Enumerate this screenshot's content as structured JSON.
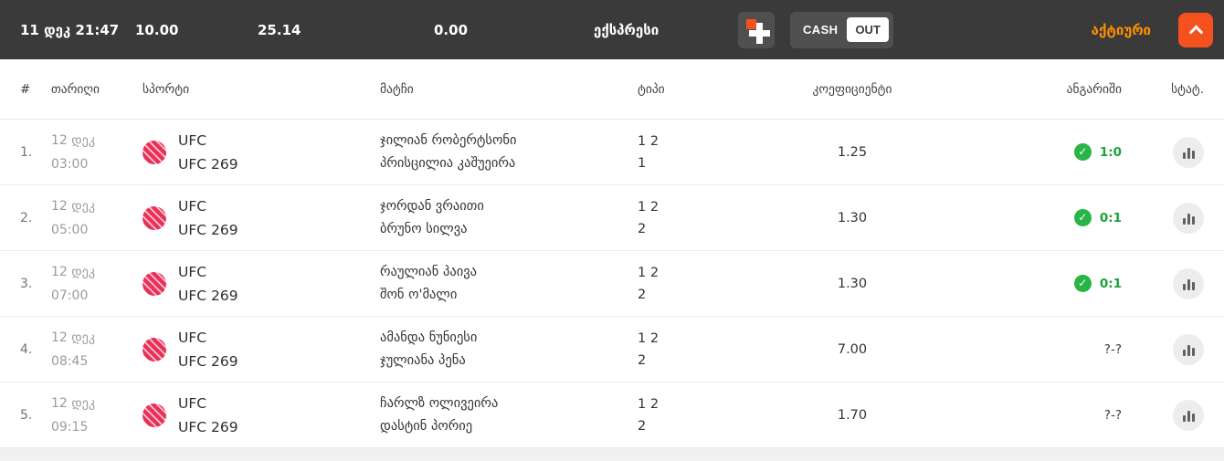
{
  "header": {
    "datetime": "11 დეკ 21:47",
    "stake": "10.00",
    "potential_win": "25.14",
    "cashout_value": "0.00",
    "bet_type": "ექსპრესი",
    "cash_label": "CASH",
    "out_label": "OUT",
    "status_label": "აქტიური"
  },
  "icons": {
    "won_check": "✓"
  },
  "colors": {
    "topbar_bg": "#3a3a3a",
    "accent_orange": "#f4511e",
    "status_orange": "#ff9000",
    "won_green": "#28b446",
    "sport_icon_red": "#e93059"
  },
  "table": {
    "columns": [
      "#",
      "თარიღი",
      "სპორტი",
      "მატჩი",
      "ტიპი",
      "კოეფიციენტი",
      "ანგარიში",
      "სტატ."
    ],
    "rows": [
      {
        "num": "1.",
        "date": "12 დეკ",
        "time": "03:00",
        "sport": "UFC",
        "tournament": "UFC 269",
        "home": "ჯილიან რობერტსონი",
        "away": "პრისცილია კაშუეირა",
        "market": "1 2",
        "pick": "1",
        "odds": "1.25",
        "score": "1:0",
        "won": true
      },
      {
        "num": "2.",
        "date": "12 დეკ",
        "time": "05:00",
        "sport": "UFC",
        "tournament": "UFC 269",
        "home": "ჯორდან ვრაითი",
        "away": "ბრუნო სილვა",
        "market": "1 2",
        "pick": "2",
        "odds": "1.30",
        "score": "0:1",
        "won": true
      },
      {
        "num": "3.",
        "date": "12 დეკ",
        "time": "07:00",
        "sport": "UFC",
        "tournament": "UFC 269",
        "home": "რაულიან პაივა",
        "away": "შონ ო'მალი",
        "market": "1 2",
        "pick": "2",
        "odds": "1.30",
        "score": "0:1",
        "won": true
      },
      {
        "num": "4.",
        "date": "12 დეკ",
        "time": "08:45",
        "sport": "UFC",
        "tournament": "UFC 269",
        "home": "ამანდა ნუნიესი",
        "away": "ჯულიანა პენა",
        "market": "1 2",
        "pick": "2",
        "odds": "7.00",
        "score": "?-?",
        "won": false
      },
      {
        "num": "5.",
        "date": "12 დეკ",
        "time": "09:15",
        "sport": "UFC",
        "tournament": "UFC 269",
        "home": "ჩარლზ ოლივეირა",
        "away": "დასტინ პორიე",
        "market": "1 2",
        "pick": "2",
        "odds": "1.70",
        "score": "?-?",
        "won": false
      }
    ]
  }
}
